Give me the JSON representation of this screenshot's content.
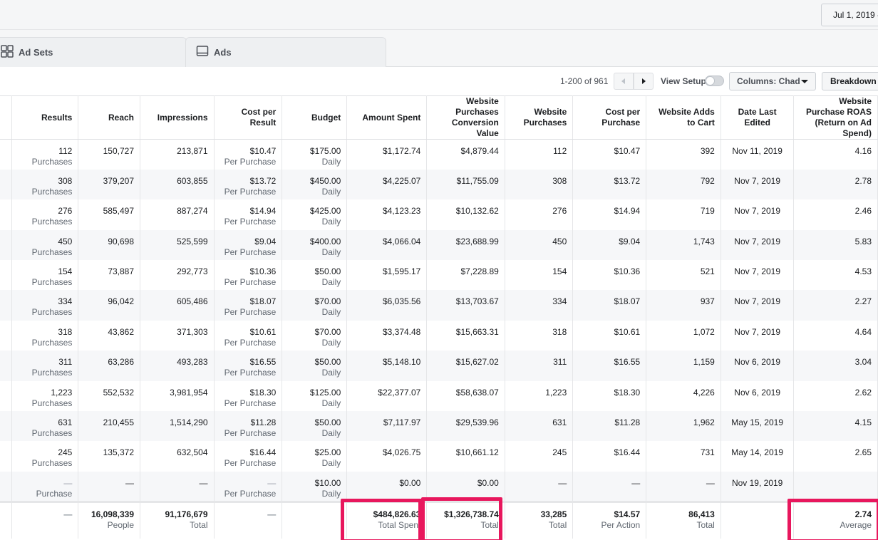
{
  "header": {
    "date_range": "Jul 1, 2019 -"
  },
  "tabs": [
    {
      "label": "Ad Sets",
      "icon": "grid-icon"
    },
    {
      "label": "Ads",
      "icon": "ad-icon"
    }
  ],
  "toolbar": {
    "pager": "1-200 of 961",
    "view_setup": "View Setup",
    "columns": "Columns: Chad",
    "breakdown": "Breakdown"
  },
  "columns": [
    "Results",
    "Reach",
    "Impressions",
    "Cost per Result",
    "Budget",
    "Amount Spent",
    "Website Purchases Conversion Value",
    "Website Purchases",
    "Cost per Purchase",
    "Website Adds to Cart",
    "Date Last Edited",
    "Website Purchase ROAS (Return on Ad Spend)"
  ],
  "rows": [
    {
      "results": "112",
      "results_sub": "Purchases",
      "reach": "150,727",
      "impressions": "213,871",
      "cpr": "$10.47",
      "cpr_sub": "Per Purchase",
      "budget": "$175.00",
      "budget_sub": "Daily",
      "spent": "$1,172.74",
      "conv_value": "$4,879.44",
      "purchases": "112",
      "cpp": "$10.47",
      "adds": "392",
      "date": "Nov 11, 2019",
      "roas": "4.16"
    },
    {
      "results": "308",
      "results_sub": "Purchases",
      "reach": "379,207",
      "impressions": "603,855",
      "cpr": "$13.72",
      "cpr_sub": "Per Purchase",
      "budget": "$450.00",
      "budget_sub": "Daily",
      "spent": "$4,225.07",
      "conv_value": "$11,755.09",
      "purchases": "308",
      "cpp": "$13.72",
      "adds": "792",
      "date": "Nov 7, 2019",
      "roas": "2.78"
    },
    {
      "results": "276",
      "results_sub": "Purchases",
      "reach": "585,497",
      "impressions": "887,274",
      "cpr": "$14.94",
      "cpr_sub": "Per Purchase",
      "budget": "$425.00",
      "budget_sub": "Daily",
      "spent": "$4,123.23",
      "conv_value": "$10,132.62",
      "purchases": "276",
      "cpp": "$14.94",
      "adds": "719",
      "date": "Nov 7, 2019",
      "roas": "2.46"
    },
    {
      "results": "450",
      "results_sub": "Purchases",
      "reach": "90,698",
      "impressions": "525,599",
      "cpr": "$9.04",
      "cpr_sub": "Per Purchase",
      "budget": "$400.00",
      "budget_sub": "Daily",
      "spent": "$4,066.04",
      "conv_value": "$23,688.99",
      "purchases": "450",
      "cpp": "$9.04",
      "adds": "1,743",
      "date": "Nov 7, 2019",
      "roas": "5.83"
    },
    {
      "results": "154",
      "results_sub": "Purchases",
      "reach": "73,887",
      "impressions": "292,773",
      "cpr": "$10.36",
      "cpr_sub": "Per Purchase",
      "budget": "$50.00",
      "budget_sub": "Daily",
      "spent": "$1,595.17",
      "conv_value": "$7,228.89",
      "purchases": "154",
      "cpp": "$10.36",
      "adds": "521",
      "date": "Nov 7, 2019",
      "roas": "4.53"
    },
    {
      "results": "334",
      "results_sub": "Purchases",
      "reach": "96,042",
      "impressions": "605,486",
      "cpr": "$18.07",
      "cpr_sub": "Per Purchase",
      "budget": "$70.00",
      "budget_sub": "Daily",
      "spent": "$6,035.56",
      "conv_value": "$13,703.67",
      "purchases": "334",
      "cpp": "$18.07",
      "adds": "937",
      "date": "Nov 7, 2019",
      "roas": "2.27"
    },
    {
      "results": "318",
      "results_sub": "Purchases",
      "reach": "43,862",
      "impressions": "371,303",
      "cpr": "$10.61",
      "cpr_sub": "Per Purchase",
      "budget": "$70.00",
      "budget_sub": "Daily",
      "spent": "$3,374.48",
      "conv_value": "$15,663.31",
      "purchases": "318",
      "cpp": "$10.61",
      "adds": "1,072",
      "date": "Nov 7, 2019",
      "roas": "4.64"
    },
    {
      "results": "311",
      "results_sub": "Purchases",
      "reach": "63,286",
      "impressions": "493,283",
      "cpr": "$16.55",
      "cpr_sub": "Per Purchase",
      "budget": "$50.00",
      "budget_sub": "Daily",
      "spent": "$5,148.10",
      "conv_value": "$15,627.02",
      "purchases": "311",
      "cpp": "$16.55",
      "adds": "1,159",
      "date": "Nov 6, 2019",
      "roas": "3.04"
    },
    {
      "results": "1,223",
      "results_sub": "Purchases",
      "reach": "552,532",
      "impressions": "3,981,954",
      "cpr": "$18.30",
      "cpr_sub": "Per Purchase",
      "budget": "$125.00",
      "budget_sub": "Daily",
      "spent": "$22,377.07",
      "conv_value": "$58,638.07",
      "purchases": "1,223",
      "cpp": "$18.30",
      "adds": "4,226",
      "date": "Nov 6, 2019",
      "roas": "2.62"
    },
    {
      "results": "631",
      "results_sub": "Purchases",
      "reach": "210,455",
      "impressions": "1,514,290",
      "cpr": "$11.28",
      "cpr_sub": "Per Purchase",
      "budget": "$50.00",
      "budget_sub": "Daily",
      "spent": "$7,117.97",
      "conv_value": "$29,539.96",
      "purchases": "631",
      "cpp": "$11.28",
      "adds": "1,962",
      "date": "May 15, 2019",
      "roas": "4.15"
    },
    {
      "results": "245",
      "results_sub": "Purchases",
      "reach": "135,372",
      "impressions": "632,504",
      "cpr": "$16.44",
      "cpr_sub": "Per Purchase",
      "budget": "$25.00",
      "budget_sub": "Daily",
      "spent": "$4,026.75",
      "conv_value": "$10,661.12",
      "purchases": "245",
      "cpp": "$16.44",
      "adds": "731",
      "date": "May 14, 2019",
      "roas": "2.65"
    },
    {
      "results": "—",
      "results_sub": "Purchase",
      "reach": "—",
      "impressions": "—",
      "cpr": "—",
      "cpr_sub": "Per Purchase",
      "budget": "$10.00",
      "budget_sub": "Daily",
      "spent": "$0.00",
      "conv_value": "$0.00",
      "purchases": "—",
      "cpp": "—",
      "adds": "—",
      "date": "Nov 19, 2019",
      "roas": ""
    }
  ],
  "totals": {
    "results": "—",
    "reach": "16,098,339",
    "reach_sub": "People",
    "impressions": "91,176,679",
    "impressions_sub": "Total",
    "cpr": "—",
    "spent": "$484,826.63",
    "spent_sub": "Total Spent",
    "conv_value": "$1,326,738.74",
    "conv_value_sub": "Total",
    "purchases": "33,285",
    "purchases_sub": "Total",
    "cpp": "$14.57",
    "cpp_sub": "Per Action",
    "adds": "86,413",
    "adds_sub": "Total",
    "roas": "2.74",
    "roas_sub": "Average"
  },
  "colors": {
    "highlight": "#e8175d",
    "row_alt": "#f6f7f9",
    "border": "#dddfe2"
  }
}
